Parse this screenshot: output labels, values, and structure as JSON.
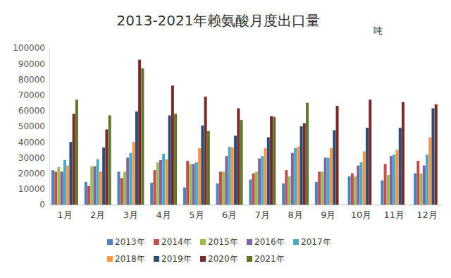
{
  "chart_data": {
    "type": "bar",
    "title": "2013-2021年赖氨酸月度出口量",
    "y_label": "吨",
    "categories": [
      "1月",
      "2月",
      "3月",
      "4月",
      "5月",
      "6月",
      "7月",
      "8月",
      "9月",
      "10月",
      "11月",
      "12月"
    ],
    "series": [
      {
        "name": "2013年",
        "color": "#4f81bd",
        "values": [
          22000,
          14500,
          21000,
          14000,
          11000,
          13500,
          16000,
          13500,
          14500,
          18000,
          15500,
          20000
        ]
      },
      {
        "name": "2014年",
        "color": "#c0504d",
        "values": [
          21000,
          12000,
          17000,
          22000,
          28000,
          21000,
          20000,
          22000,
          21000,
          20000,
          26000,
          28000
        ]
      },
      {
        "name": "2015年",
        "color": "#9bbb59",
        "values": [
          24000,
          24500,
          21000,
          27000,
          26000,
          21000,
          21000,
          18000,
          21000,
          18000,
          19000,
          20000
        ]
      },
      {
        "name": "2016年",
        "color": "#8064a2",
        "values": [
          21000,
          24500,
          30000,
          28500,
          26000,
          31000,
          29500,
          33000,
          30000,
          25000,
          31000,
          25000
        ]
      },
      {
        "name": "2017年",
        "color": "#4bacc6",
        "values": [
          28500,
          29000,
          33000,
          32500,
          27000,
          37000,
          31000,
          36000,
          30000,
          27000,
          32000,
          32000
        ]
      },
      {
        "name": "2018年",
        "color": "#f79646",
        "values": [
          25000,
          21000,
          40000,
          29000,
          36000,
          36500,
          36000,
          37000,
          36000,
          34000,
          35000,
          43000
        ]
      },
      {
        "name": "2019年",
        "color": "#2c4d75",
        "values": [
          40000,
          36500,
          59500,
          57000,
          50500,
          44000,
          43000,
          50000,
          47500,
          49000,
          49000,
          61500
        ]
      },
      {
        "name": "2020年",
        "color": "#772c2a",
        "values": [
          58000,
          48000,
          92500,
          76000,
          69000,
          61500,
          56500,
          52000,
          63000,
          67000,
          65500,
          64000
        ]
      },
      {
        "name": "2021年",
        "color": "#5f7530",
        "values": [
          67000,
          57000,
          87000,
          58000,
          47000,
          54000,
          56000,
          65000,
          null,
          null,
          null,
          null
        ]
      }
    ],
    "ylim": [
      0,
      100000
    ],
    "yticks": [
      0,
      10000,
      20000,
      30000,
      40000,
      50000,
      60000,
      70000,
      80000,
      90000,
      100000
    ],
    "grid": false,
    "legend": "bottom"
  }
}
